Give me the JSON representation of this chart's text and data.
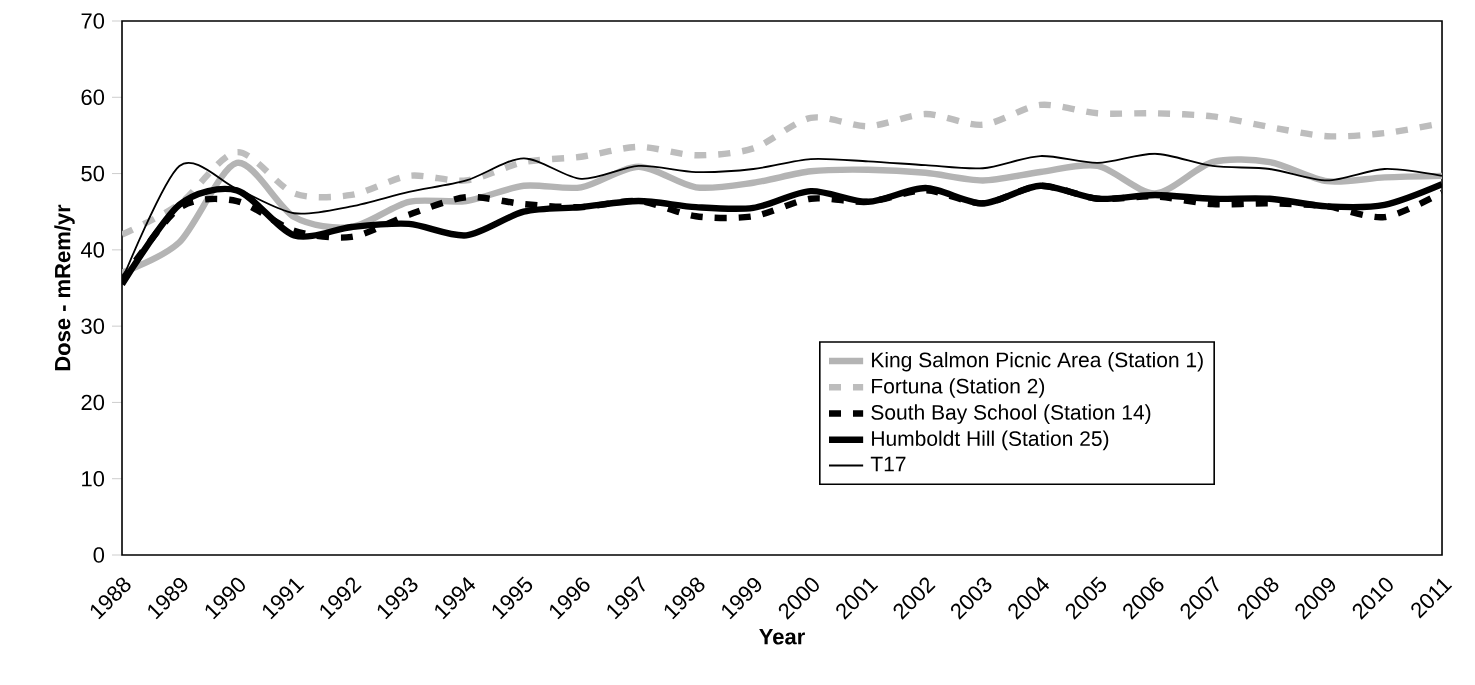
{
  "chart_data": {
    "type": "line",
    "xlabel": "Year",
    "ylabel": "Dose - mRem/yr",
    "categories": [
      "1988",
      "1989",
      "1990",
      "1991",
      "1992",
      "1993",
      "1994",
      "1995",
      "1996",
      "1997",
      "1998",
      "1999",
      "2000",
      "2001",
      "2002",
      "2003",
      "2004",
      "2005",
      "2006",
      "2007",
      "2008",
      "2009",
      "2010",
      "2011"
    ],
    "ylim": [
      0,
      70
    ],
    "yticks": [
      0,
      10,
      20,
      30,
      40,
      50,
      60,
      70
    ],
    "legend": "bottom right",
    "series": [
      {
        "name": "King Salmon Picnic Area (Station 1)",
        "color": "#b4b4b4",
        "line_style": "solid",
        "values": [
          37,
          41,
          51.4,
          44.3,
          43,
          46.3,
          46.4,
          48.4,
          48.2,
          50.9,
          48.2,
          48.8,
          50.3,
          50.5,
          50.1,
          49.1,
          50.2,
          51,
          47.4,
          51.5,
          51.5,
          49,
          49.5,
          49.7
        ]
      },
      {
        "name": "Fortuna (Station 2)",
        "color": "#bdbdbd",
        "line_style": "dashed",
        "values": [
          42,
          46,
          52.8,
          47.4,
          47.2,
          49.7,
          49.1,
          51.5,
          52.2,
          53.5,
          52.4,
          53.3,
          57.3,
          56.2,
          57.8,
          56.4,
          59,
          57.9,
          57.9,
          57.5,
          56.1,
          54.9,
          55.3,
          56.6
        ]
      },
      {
        "name": "South Bay School (Station 14)",
        "color": "#000000",
        "line_style": "dashed",
        "values": [
          36,
          45.5,
          46.4,
          42.5,
          41.7,
          44.6,
          46.9,
          46,
          45.6,
          46.4,
          44.4,
          44.4,
          46.7,
          46.3,
          47.8,
          46.1,
          48.4,
          46.7,
          47,
          46,
          46.1,
          45.7,
          44.3,
          47.5
        ]
      },
      {
        "name": "Humboldt Hill (Station 25)",
        "color": "#000000",
        "line_style": "solid",
        "values": [
          35.5,
          45.9,
          47.8,
          41.9,
          43,
          43.4,
          41.9,
          45,
          45.6,
          46.4,
          45.6,
          45.5,
          47.7,
          46.3,
          48.1,
          46.1,
          48.4,
          46.7,
          47.2,
          46.7,
          46.7,
          45.7,
          45.9,
          48.6
        ]
      },
      {
        "name": "T17",
        "color": "#000000",
        "line_style": "solid",
        "values": [
          36,
          51,
          48,
          44.8,
          45.7,
          47.6,
          49.1,
          52,
          49.3,
          51,
          50.2,
          50.6,
          51.9,
          51.6,
          51.1,
          50.7,
          52.3,
          51.4,
          52.6,
          51,
          50.6,
          49.1,
          50.6,
          49.7
        ]
      }
    ]
  }
}
